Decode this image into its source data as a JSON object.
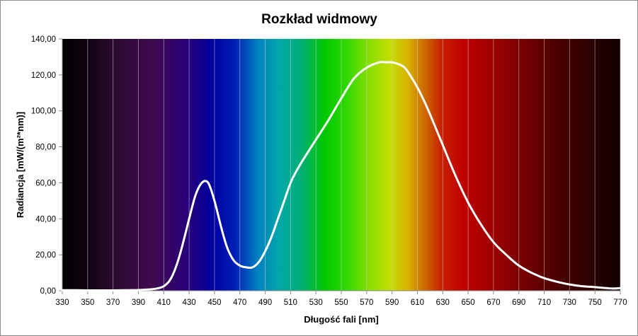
{
  "chart_data": {
    "type": "line",
    "title": "Rozkład widmowy",
    "xlabel": "Długość fali [nm]",
    "ylabel": "Radiancja [mW/(m²*nm)]",
    "xlim": [
      330,
      770
    ],
    "ylim": [
      0,
      140
    ],
    "x_ticks": [
      "330",
      "350",
      "370",
      "390",
      "410",
      "430",
      "450",
      "470",
      "490",
      "510",
      "530",
      "550",
      "570",
      "590",
      "610",
      "630",
      "650",
      "670",
      "690",
      "710",
      "730",
      "750",
      "770"
    ],
    "y_ticks": [
      "0,00",
      "20,00",
      "40,00",
      "60,00",
      "80,00",
      "100,00",
      "120,00",
      "140,00"
    ],
    "grid": "vertical",
    "background": "visible spectrum gradient",
    "line_color": "#ffffff",
    "series": [
      {
        "x": [
          330,
          340,
          350,
          360,
          370,
          380,
          390,
          400,
          405,
          410,
          415,
          420,
          425,
          430,
          435,
          440,
          445,
          450,
          455,
          460,
          465,
          470,
          475,
          480,
          485,
          490,
          495,
          500,
          505,
          510,
          515,
          520,
          530,
          540,
          550,
          560,
          570,
          580,
          585,
          590,
          595,
          600,
          605,
          610,
          615,
          620,
          630,
          640,
          650,
          660,
          670,
          680,
          690,
          700,
          710,
          720,
          730,
          740,
          750,
          760,
          765,
          770
        ],
        "y": [
          0.3,
          0.3,
          0.2,
          0.2,
          0.2,
          0.3,
          0.4,
          0.8,
          1.3,
          2.5,
          6,
          14,
          26,
          40,
          53,
          60,
          60,
          50,
          36,
          24,
          17,
          14,
          13,
          13,
          16,
          22,
          30,
          40,
          50,
          60,
          67,
          73,
          84,
          95,
          107,
          118,
          124,
          127,
          127,
          127,
          126,
          124,
          119,
          113,
          106,
          98,
          81,
          64,
          49,
          37,
          27,
          20,
          14,
          10,
          7,
          5,
          3.5,
          2.5,
          2,
          1.4,
          1.2,
          1.5
        ]
      }
    ]
  }
}
